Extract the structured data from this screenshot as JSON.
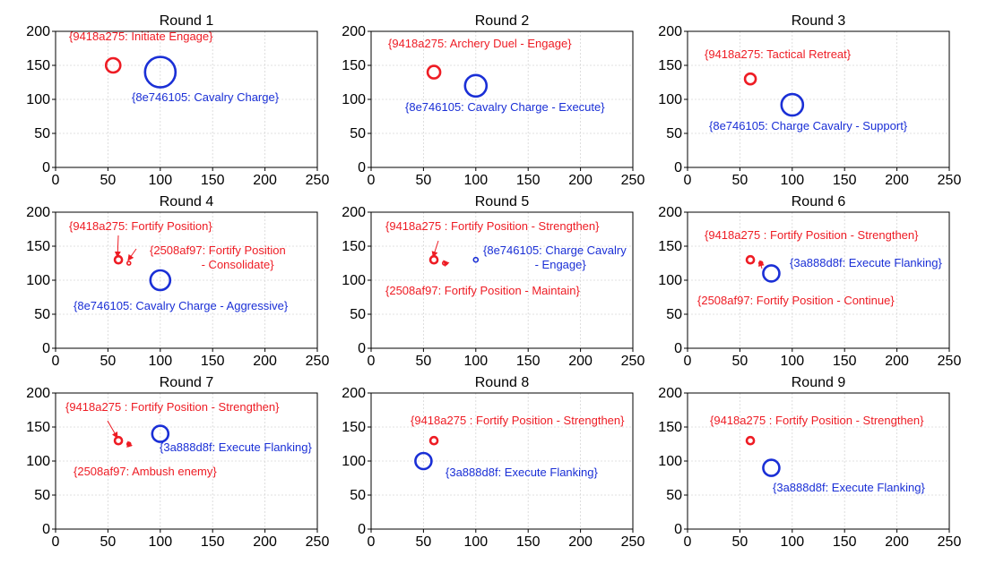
{
  "colors": {
    "red": "#ee1c24",
    "blue": "#1a2fd6"
  },
  "chart_data": [
    {
      "type": "scatter",
      "title": "Round 1",
      "xlim": [
        0,
        250
      ],
      "ylim": [
        0,
        200
      ],
      "xticks": [
        0,
        50,
        100,
        150,
        200,
        250
      ],
      "yticks": [
        0,
        50,
        100,
        150,
        200
      ],
      "grid": true,
      "points": [
        {
          "x": 55,
          "y": 150,
          "r": 8,
          "color": "red",
          "label": "{9418a275: Initiate Engage}"
        },
        {
          "x": 100,
          "y": 140,
          "r": 17,
          "color": "blue",
          "label": "{8e746105: Cavalry Charge}"
        }
      ]
    },
    {
      "type": "scatter",
      "title": "Round 2",
      "xlim": [
        0,
        250
      ],
      "ylim": [
        0,
        200
      ],
      "xticks": [
        0,
        50,
        100,
        150,
        200,
        250
      ],
      "yticks": [
        0,
        50,
        100,
        150,
        200
      ],
      "grid": true,
      "points": [
        {
          "x": 60,
          "y": 140,
          "r": 7,
          "color": "red",
          "label": "{9418a275: Archery Duel - Engage}"
        },
        {
          "x": 100,
          "y": 120,
          "r": 12,
          "color": "blue",
          "label": "{8e746105: Cavalry Charge - Execute}"
        }
      ]
    },
    {
      "type": "scatter",
      "title": "Round 3",
      "xlim": [
        0,
        250
      ],
      "ylim": [
        0,
        200
      ],
      "xticks": [
        0,
        50,
        100,
        150,
        200,
        250
      ],
      "yticks": [
        0,
        50,
        100,
        150,
        200
      ],
      "grid": true,
      "points": [
        {
          "x": 60,
          "y": 130,
          "r": 6,
          "color": "red",
          "label": "{9418a275: Tactical Retreat}"
        },
        {
          "x": 100,
          "y": 92,
          "r": 12,
          "color": "blue",
          "label": "{8e746105: Charge Cavalry - Support}"
        }
      ]
    },
    {
      "type": "scatter",
      "title": "Round 4",
      "xlim": [
        0,
        250
      ],
      "ylim": [
        0,
        200
      ],
      "xticks": [
        0,
        50,
        100,
        150,
        200,
        250
      ],
      "yticks": [
        0,
        50,
        100,
        150,
        200
      ],
      "grid": true,
      "points": [
        {
          "x": 60,
          "y": 130,
          "r": 4,
          "color": "red",
          "label": "{9418a275: Fortify Position}"
        },
        {
          "x": 70,
          "y": 125,
          "r": 2,
          "color": "red",
          "label": "{2508af97: Fortify Position\n - Consolidate}"
        },
        {
          "x": 100,
          "y": 100,
          "r": 11,
          "color": "blue",
          "label": "{8e746105: Cavalry Charge - Aggressive}"
        }
      ]
    },
    {
      "type": "scatter",
      "title": "Round 5",
      "xlim": [
        0,
        250
      ],
      "ylim": [
        0,
        200
      ],
      "xticks": [
        0,
        50,
        100,
        150,
        200,
        250
      ],
      "yticks": [
        0,
        50,
        100,
        150,
        200
      ],
      "grid": true,
      "points": [
        {
          "x": 60,
          "y": 130,
          "r": 4,
          "color": "red",
          "label": "{9418a275 : Fortify Position - Strengthen}"
        },
        {
          "x": 70,
          "y": 125,
          "r": 2,
          "color": "red",
          "label": "{2508af97: Fortify Position - Maintain}"
        },
        {
          "x": 100,
          "y": 130,
          "r": 2.5,
          "color": "blue",
          "label": "{8e746105: Charge Cavalry\n - Engage}"
        }
      ]
    },
    {
      "type": "scatter",
      "title": "Round 6",
      "xlim": [
        0,
        250
      ],
      "ylim": [
        0,
        200
      ],
      "xticks": [
        0,
        50,
        100,
        150,
        200,
        250
      ],
      "yticks": [
        0,
        50,
        100,
        150,
        200
      ],
      "grid": true,
      "points": [
        {
          "x": 60,
          "y": 130,
          "r": 4,
          "color": "red",
          "label": "{9418a275 : Fortify Position - Strengthen}"
        },
        {
          "x": 70,
          "y": 125,
          "r": 2,
          "color": "red",
          "label": "{2508af97: Fortify Position - Continue}"
        },
        {
          "x": 80,
          "y": 110,
          "r": 9,
          "color": "blue",
          "label": "{3a888d8f: Execute Flanking}"
        }
      ]
    },
    {
      "type": "scatter",
      "title": "Round 7",
      "xlim": [
        0,
        250
      ],
      "ylim": [
        0,
        200
      ],
      "xticks": [
        0,
        50,
        100,
        150,
        200,
        250
      ],
      "yticks": [
        0,
        50,
        100,
        150,
        200
      ],
      "grid": true,
      "points": [
        {
          "x": 60,
          "y": 130,
          "r": 4,
          "color": "red",
          "label": "{9418a275 : Fortify Position - Strengthen}"
        },
        {
          "x": 70,
          "y": 125,
          "r": 2,
          "color": "red",
          "label": "{2508af97: Ambush enemy}"
        },
        {
          "x": 100,
          "y": 140,
          "r": 9,
          "color": "blue",
          "label": "{3a888d8f: Execute Flanking}"
        }
      ]
    },
    {
      "type": "scatter",
      "title": "Round 8",
      "xlim": [
        0,
        250
      ],
      "ylim": [
        0,
        200
      ],
      "xticks": [
        0,
        50,
        100,
        150,
        200,
        250
      ],
      "yticks": [
        0,
        50,
        100,
        150,
        200
      ],
      "grid": true,
      "points": [
        {
          "x": 60,
          "y": 130,
          "r": 4,
          "color": "red",
          "label": "{9418a275 : Fortify Position - Strengthen}"
        },
        {
          "x": 50,
          "y": 100,
          "r": 9,
          "color": "blue",
          "label": "{3a888d8f: Execute Flanking}"
        }
      ]
    },
    {
      "type": "scatter",
      "title": "Round 9",
      "xlim": [
        0,
        250
      ],
      "ylim": [
        0,
        200
      ],
      "xticks": [
        0,
        50,
        100,
        150,
        200,
        250
      ],
      "yticks": [
        0,
        50,
        100,
        150,
        200
      ],
      "grid": true,
      "points": [
        {
          "x": 60,
          "y": 130,
          "r": 4,
          "color": "red",
          "label": "{9418a275 : Fortify Position - Strengthen}"
        },
        {
          "x": 80,
          "y": 90,
          "r": 9,
          "color": "blue",
          "label": "{3a888d8f: Execute Flanking}"
        }
      ]
    }
  ]
}
